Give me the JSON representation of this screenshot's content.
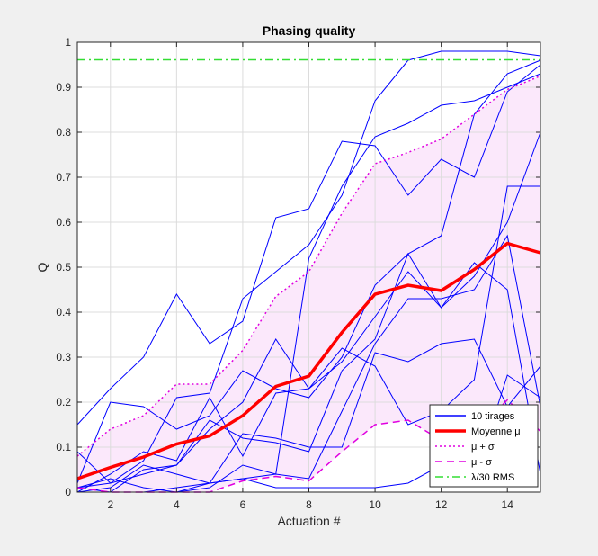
{
  "chart_data": {
    "type": "line",
    "title": "Phasing quality",
    "xlabel": "Actuation #",
    "ylabel": "Q",
    "xlim": [
      1,
      15
    ],
    "ylim": [
      0,
      1
    ],
    "xticks": [
      2,
      4,
      6,
      8,
      10,
      12,
      14
    ],
    "xtick_labels": [
      "2",
      "4",
      "6",
      "8",
      "10",
      "12",
      "14"
    ],
    "yticks": [
      0,
      0.1,
      0.2,
      0.3,
      0.4,
      0.5,
      0.6,
      0.7,
      0.8,
      0.9,
      1
    ],
    "ytick_labels": [
      "0",
      "0.1",
      "0.2",
      "0.3",
      "0.4",
      "0.5",
      "0.6",
      "0.7",
      "0.8",
      "0.9",
      "1"
    ],
    "grid": true,
    "legend_position": "bottom-right",
    "x": [
      1,
      2,
      3,
      4,
      5,
      6,
      7,
      8,
      9,
      10,
      11,
      12,
      13,
      14,
      15
    ],
    "band": {
      "lower_series": "μ - σ",
      "upper_series": "μ + σ",
      "color": "#fbe8fb"
    },
    "trials_legend_label": "10 tirages",
    "trials_color": "#0000ff",
    "trials": [
      [
        0.15,
        0.23,
        0.3,
        0.44,
        0.33,
        0.38,
        0.61,
        0.63,
        0.78,
        0.77,
        0.66,
        0.74,
        0.7,
        0.89,
        0.95
      ],
      [
        0.09,
        0.02,
        0.07,
        0.21,
        0.22,
        0.43,
        0.49,
        0.55,
        0.66,
        0.87,
        0.96,
        0.98,
        0.98,
        0.98,
        0.97
      ],
      [
        0.02,
        0.2,
        0.19,
        0.14,
        0.17,
        0.27,
        0.23,
        0.21,
        0.3,
        0.46,
        0.53,
        0.57,
        0.84,
        0.93,
        0.96
      ],
      [
        0.01,
        0.02,
        0.04,
        0.06,
        0.14,
        0.2,
        0.34,
        0.23,
        0.29,
        0.39,
        0.49,
        0.41,
        0.51,
        0.45,
        0.04
      ],
      [
        0.0,
        0.04,
        0.09,
        0.07,
        0.21,
        0.08,
        0.22,
        0.23,
        0.32,
        0.28,
        0.15,
        0.18,
        0.25,
        0.68,
        0.68
      ],
      [
        0.0,
        0.01,
        0.06,
        0.04,
        0.02,
        0.13,
        0.12,
        0.1,
        0.1,
        0.31,
        0.29,
        0.33,
        0.34,
        0.19,
        0.28
      ],
      [
        0.01,
        0.03,
        0.01,
        0.0,
        0.02,
        0.03,
        0.01,
        0.01,
        0.01,
        0.01,
        0.02,
        0.06,
        0.03,
        0.26,
        0.21
      ],
      [
        0.0,
        0.0,
        0.0,
        0.01,
        0.02,
        0.03,
        0.04,
        0.03,
        0.18,
        0.33,
        0.43,
        0.43,
        0.45,
        0.57,
        0.19
      ],
      [
        0.01,
        0.0,
        0.05,
        0.06,
        0.16,
        0.12,
        0.11,
        0.09,
        0.27,
        0.34,
        0.53,
        0.41,
        0.48,
        0.6,
        0.8
      ],
      [
        0.0,
        0.0,
        0.0,
        0.0,
        0.01,
        0.06,
        0.04,
        0.52,
        0.68,
        0.79,
        0.82,
        0.86,
        0.87,
        0.9,
        0.93
      ]
    ],
    "series": [
      {
        "name": "Moyenne μ",
        "color": "#ff0000",
        "style": "solid-thick",
        "values": [
          0.03,
          0.055,
          0.078,
          0.107,
          0.125,
          0.17,
          0.235,
          0.258,
          0.355,
          0.44,
          0.46,
          0.448,
          0.495,
          0.553,
          0.532
        ]
      },
      {
        "name": "μ + σ",
        "color": "#e000e0",
        "style": "dotted",
        "values": [
          0.08,
          0.14,
          0.17,
          0.24,
          0.24,
          0.315,
          0.435,
          0.49,
          0.62,
          0.73,
          0.755,
          0.785,
          0.84,
          0.895,
          0.925
        ]
      },
      {
        "name": "μ - σ",
        "color": "#e000e0",
        "style": "dashed",
        "values": [
          0.01,
          0.0,
          0.0,
          0.0,
          0.0,
          0.025,
          0.035,
          0.025,
          0.09,
          0.15,
          0.16,
          0.115,
          0.13,
          0.205,
          0.135
        ]
      },
      {
        "name": "λ/30 RMS",
        "color": "#33dd33",
        "style": "dashdot",
        "values": [
          0.961,
          0.961,
          0.961,
          0.961,
          0.961,
          0.961,
          0.961,
          0.961,
          0.961,
          0.961,
          0.961,
          0.961,
          0.961,
          0.961,
          0.961
        ]
      }
    ],
    "legend": [
      {
        "label": "10 tirages",
        "color": "#0000ff",
        "style": "solid"
      },
      {
        "label": "Moyenne μ",
        "color": "#ff0000",
        "style": "solid-thick"
      },
      {
        "label": "μ + σ",
        "color": "#e000e0",
        "style": "dotted"
      },
      {
        "label": "μ - σ",
        "color": "#e000e0",
        "style": "dashed"
      },
      {
        "label": "λ/30 RMS",
        "color": "#33dd33",
        "style": "dashdot"
      }
    ]
  }
}
